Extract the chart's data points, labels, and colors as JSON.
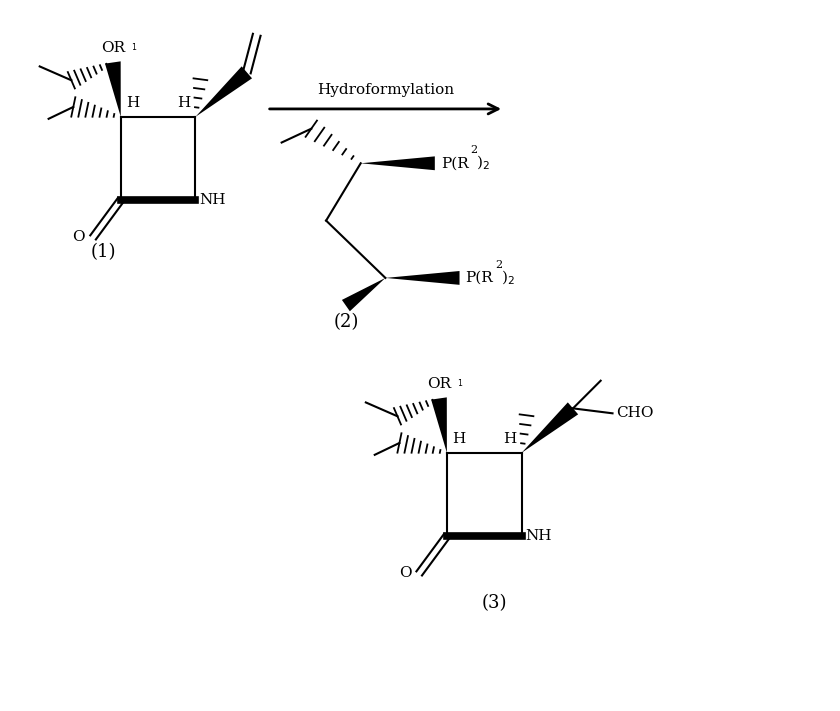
{
  "background_color": "#ffffff",
  "fig_width": 8.4,
  "fig_height": 7.11,
  "arrow_label": "Hydroformylation",
  "compound1_label": "(1)",
  "compound2_label": "(2)",
  "compound3_label": "(3)"
}
